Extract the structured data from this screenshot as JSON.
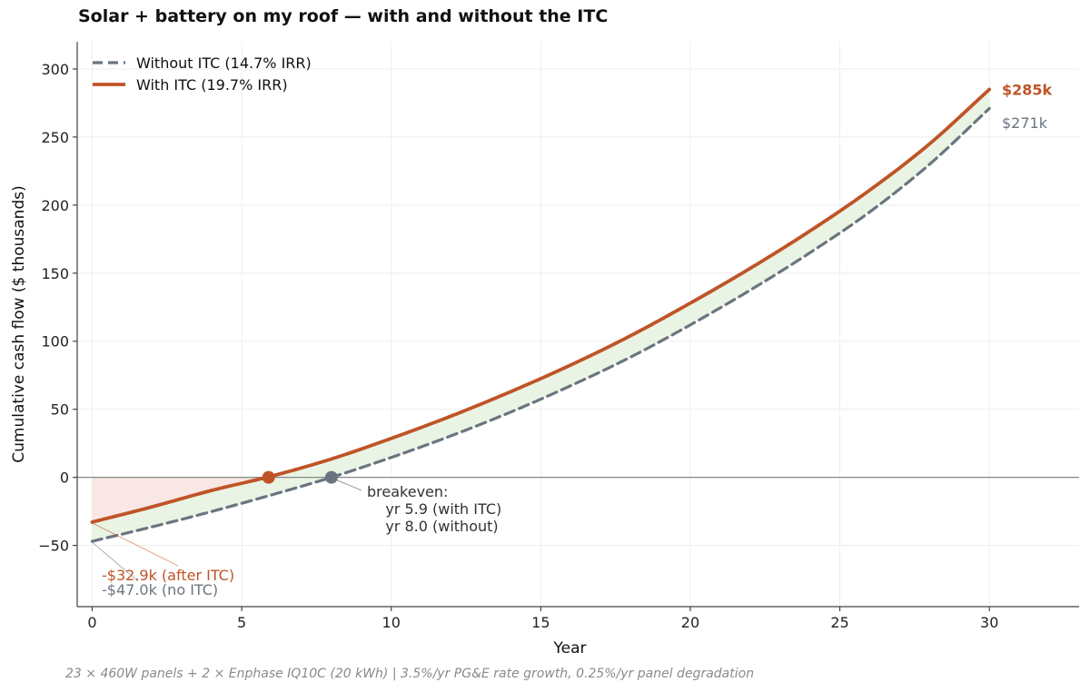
{
  "title": "Solar + battery on my roof — with and without the ITC",
  "footnote": "23 × 460W panels + 2 × Enphase IQ10C (20 kWh)  |  3.5%/yr PG&E rate growth, 0.25%/yr panel degradation",
  "colors": {
    "with_itc": "#bf5427",
    "without_itc": "#6b7580",
    "gap_fill": "#e6f2e0",
    "negative_fill": "#f7e4e1",
    "zero_line": "#888888",
    "grid": "#eeeeee",
    "axis": "#444444"
  },
  "chart_data": {
    "type": "line",
    "title": "Solar + battery on my roof — with and without the ITC",
    "xlabel": "Year",
    "ylabel": "Cumulative cash flow ($ thousands)",
    "xlim": [
      -0.5,
      33
    ],
    "ylim": [
      -95,
      320
    ],
    "x_ticks": [
      0,
      5,
      10,
      15,
      20,
      25,
      30
    ],
    "y_ticks": [
      -50,
      0,
      50,
      100,
      150,
      200,
      250,
      300
    ],
    "x_tick_labels": [
      "0",
      "5",
      "10",
      "15",
      "20",
      "25",
      "30"
    ],
    "y_tick_labels": [
      "−50",
      "0",
      "50",
      "100",
      "150",
      "200",
      "250",
      "300"
    ],
    "grid": true,
    "legend_position": "top-left",
    "x": [
      0,
      2,
      4,
      6,
      8,
      10,
      12,
      14,
      16,
      18,
      20,
      22,
      24,
      26,
      28,
      30
    ],
    "series": [
      {
        "name": "Without ITC  (14.7% IRR)",
        "style": "dashed",
        "values": [
          -47.0,
          -36.4,
          -25.1,
          -12.9,
          0.0,
          14.6,
          30.5,
          48.0,
          67.3,
          88.3,
          112.0,
          137.5,
          165.0,
          195.0,
          230.0,
          271.0
        ]
      },
      {
        "name": "With ITC  (19.7% IRR)",
        "style": "solid",
        "values": [
          -32.9,
          -21.7,
          -9.6,
          0.9,
          13.5,
          28.6,
          45.0,
          63.0,
          82.5,
          104.0,
          128.0,
          153.5,
          181.0,
          211.0,
          245.0,
          285.0
        ]
      }
    ],
    "end_labels": [
      "$285k",
      "$271k"
    ],
    "breakeven_points": [
      {
        "series": "With ITC  (19.7% IRR)",
        "x": 5.9,
        "y": 0
      },
      {
        "series": "Without ITC  (14.7% IRR)",
        "x": 8.0,
        "y": 0
      }
    ],
    "annotations": {
      "breakeven": [
        "breakeven:",
        "  yr 5.9 (with ITC)",
        "  yr 8.0 (without)"
      ],
      "start_with_itc": "-$32.9k (after ITC)",
      "start_without_itc": "-$47.0k (no ITC)"
    }
  }
}
